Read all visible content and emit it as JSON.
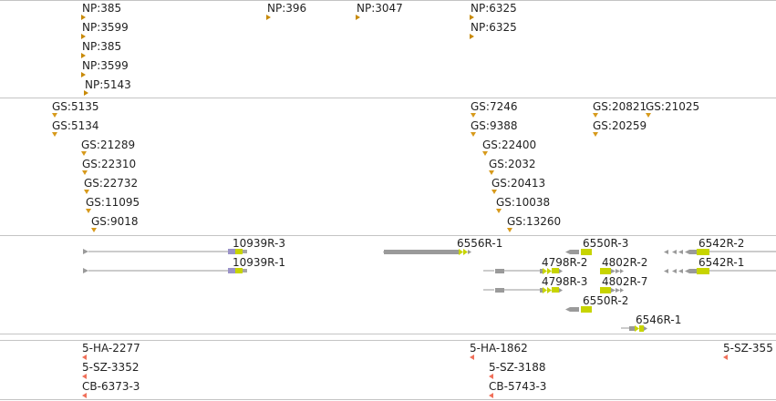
{
  "colors": {
    "np_marker": "#c88a08",
    "gs_marker": "#d79a1c",
    "oligo_marker": "#f0705a",
    "intron": "#999999",
    "exon": "#9a9a9a",
    "utr": "#a6a6a6",
    "cds": "#c7d400",
    "start_box": "#9a92c8"
  },
  "np_track": {
    "features": [
      {
        "label": "NP:385",
        "marker": "right-triangle",
        "marker_color": "np_marker"
      },
      {
        "label": "NP:3599",
        "marker": "right-triangle",
        "marker_color": "np_marker"
      },
      {
        "label": "NP:385",
        "marker": "right-triangle",
        "marker_color": "np_marker"
      },
      {
        "label": "NP:3599",
        "marker": "right-triangle",
        "marker_color": "np_marker"
      },
      {
        "label": "NP:5143",
        "marker": "right-triangle",
        "marker_color": "np_marker"
      },
      {
        "label": "NP:396",
        "marker": "right-triangle",
        "marker_color": "np_marker"
      },
      {
        "label": "NP:3047",
        "marker": "right-triangle",
        "marker_color": "np_marker"
      },
      {
        "label": "NP:6325",
        "marker": "right-triangle",
        "marker_color": "np_marker"
      },
      {
        "label": "NP:6325",
        "marker": "right-triangle",
        "marker_color": "np_marker"
      }
    ]
  },
  "gs_track": {
    "features": [
      {
        "label": "GS:5135"
      },
      {
        "label": "GS:5134"
      },
      {
        "label": "GS:21289"
      },
      {
        "label": "GS:22310"
      },
      {
        "label": "GS:22732"
      },
      {
        "label": "GS:11095"
      },
      {
        "label": "GS:9018"
      },
      {
        "label": "GS:7246"
      },
      {
        "label": "GS:9388"
      },
      {
        "label": "GS:22400"
      },
      {
        "label": "GS:2032"
      },
      {
        "label": "GS:20413"
      },
      {
        "label": "GS:10038"
      },
      {
        "label": "GS:13260"
      },
      {
        "label": "GS:20821"
      },
      {
        "label": "GS:21025"
      },
      {
        "label": "GS:20259"
      }
    ]
  },
  "gene_track": {
    "transcripts": [
      {
        "label": "10939R-3",
        "strand": "+"
      },
      {
        "label": "10939R-1",
        "strand": "+"
      },
      {
        "label": "6556R-1",
        "strand": "+"
      },
      {
        "label": "6550R-3",
        "strand": "-"
      },
      {
        "label": "4798R-2",
        "strand": "+"
      },
      {
        "label": "4798R-3",
        "strand": "+"
      },
      {
        "label": "4802R-2",
        "strand": "+"
      },
      {
        "label": "4802R-7",
        "strand": "+"
      },
      {
        "label": "6550R-2",
        "strand": "-"
      },
      {
        "label": "6542R-2",
        "strand": "-"
      },
      {
        "label": "6542R-1",
        "strand": "-"
      },
      {
        "label": "6546R-1",
        "strand": "+"
      }
    ]
  },
  "oligo_track": {
    "features": [
      {
        "label": "5-HA-2277"
      },
      {
        "label": "5-SZ-3352"
      },
      {
        "label": "CB-6373-3"
      },
      {
        "label": "5-HA-1862"
      },
      {
        "label": "5-SZ-3188"
      },
      {
        "label": "CB-5743-3"
      },
      {
        "label": "5-SZ-355"
      }
    ]
  }
}
